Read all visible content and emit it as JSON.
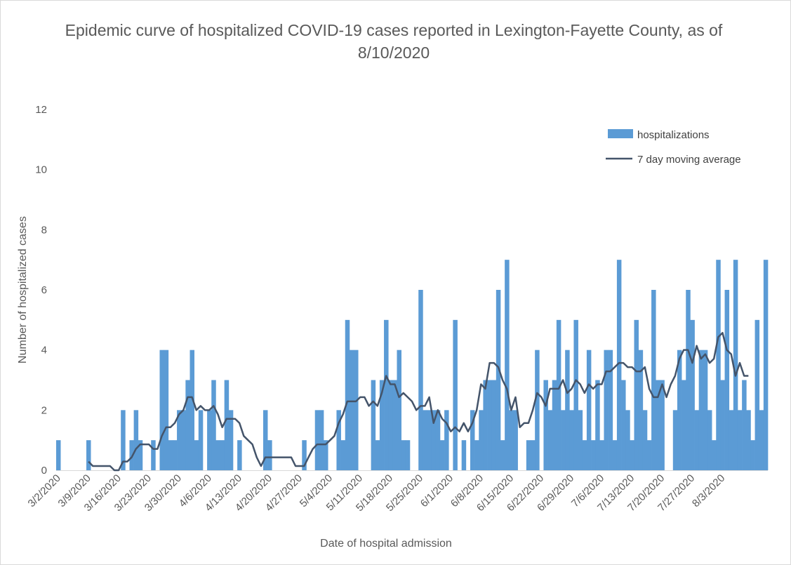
{
  "chart_data": {
    "type": "bar",
    "title": "Epidemic curve of hospitalized COVID-19 cases reported in Lexington-Fayette County, as of 8/10/2020",
    "xlabel": "Date of hospital admission",
    "ylabel": "Number of hospitalized cases",
    "ylim": [
      0,
      12
    ],
    "yticks": [
      "0",
      "2",
      "4",
      "6",
      "8",
      "10",
      "12"
    ],
    "grid": false,
    "legend_position": "top-right",
    "x_start": "3/2/2020",
    "x_end": "8/10/2020",
    "x_tick_labels": [
      "3/2/2020",
      "3/9/2020",
      "3/16/2020",
      "3/23/2020",
      "3/30/2020",
      "4/6/2020",
      "4/13/2020",
      "4/20/2020",
      "4/27/2020",
      "5/4/2020",
      "5/11/2020",
      "5/18/2020",
      "5/25/2020",
      "6/1/2020",
      "6/8/2020",
      "6/15/2020",
      "6/22/2020",
      "6/29/2020",
      "7/6/2020",
      "7/13/2020",
      "7/20/2020",
      "7/27/2020",
      "8/3/2020"
    ],
    "series": [
      {
        "name": "hospitalizations",
        "type": "bar",
        "color": "#5b9bd5",
        "values": [
          1,
          0,
          0,
          0,
          0,
          0,
          0,
          1,
          0,
          0,
          0,
          0,
          0,
          0,
          0,
          2,
          0,
          1,
          2,
          1,
          0,
          0,
          1,
          0,
          4,
          4,
          1,
          1,
          2,
          2,
          3,
          4,
          1,
          2,
          0,
          2,
          3,
          1,
          1,
          3,
          2,
          0,
          1,
          0,
          0,
          0,
          0,
          0,
          2,
          1,
          0,
          0,
          0,
          0,
          0,
          0,
          0,
          1,
          0,
          0,
          2,
          2,
          1,
          0,
          0,
          2,
          1,
          5,
          4,
          4,
          0,
          0,
          0,
          3,
          1,
          3,
          5,
          3,
          3,
          4,
          1,
          1,
          0,
          0,
          6,
          2,
          2,
          2,
          2,
          1,
          2,
          0,
          5,
          0,
          1,
          0,
          2,
          1,
          2,
          3,
          3,
          3,
          6,
          1,
          7,
          2,
          2,
          0,
          0,
          1,
          1,
          4,
          0,
          3,
          2,
          3,
          5,
          2,
          4,
          2,
          5,
          2,
          1,
          4,
          1,
          3,
          1,
          4,
          4,
          1,
          7,
          3,
          2,
          1,
          5,
          4,
          2,
          1,
          6,
          3,
          3,
          0,
          0,
          2,
          4,
          3,
          6,
          5,
          2,
          4,
          4,
          2,
          1,
          7,
          3,
          6,
          2,
          7,
          2,
          3,
          2,
          1,
          5,
          2,
          7
        ]
      },
      {
        "name": "7 day moving average",
        "type": "line",
        "color": "#44546a",
        "values": [
          null,
          null,
          null,
          null,
          null,
          null,
          null,
          0.29,
          0.14,
          0.14,
          0.14,
          0.14,
          0.14,
          0.0,
          0.0,
          0.29,
          0.29,
          0.43,
          0.71,
          0.86,
          0.86,
          0.86,
          0.71,
          0.71,
          1.14,
          1.43,
          1.43,
          1.57,
          1.86,
          2.0,
          2.43,
          2.43,
          2.0,
          2.14,
          2.0,
          2.0,
          2.14,
          1.86,
          1.43,
          1.71,
          1.71,
          1.71,
          1.57,
          1.14,
          1.0,
          0.86,
          0.43,
          0.14,
          0.43,
          0.43,
          0.43,
          0.43,
          0.43,
          0.43,
          0.43,
          0.14,
          0.14,
          0.14,
          0.43,
          0.71,
          0.86,
          0.86,
          0.86,
          1.0,
          1.14,
          1.57,
          1.86,
          2.29,
          2.29,
          2.29,
          2.43,
          2.43,
          2.14,
          2.29,
          2.14,
          2.57,
          3.14,
          2.86,
          2.86,
          2.43,
          2.57,
          2.43,
          2.29,
          2.0,
          2.14,
          2.14,
          2.43,
          1.57,
          2.0,
          1.71,
          1.57,
          1.29,
          1.43,
          1.29,
          1.57,
          1.29,
          1.57,
          2.0,
          2.86,
          2.71,
          3.57,
          3.57,
          3.43,
          3.0,
          2.71,
          2.0,
          2.43,
          1.43,
          1.57,
          1.57,
          2.0,
          2.57,
          2.43,
          2.14,
          2.71,
          2.71,
          2.71,
          3.0,
          2.57,
          2.71,
          3.0,
          2.86,
          2.57,
          2.86,
          2.71,
          2.86,
          2.86,
          3.29,
          3.29,
          3.43,
          3.57,
          3.57,
          3.43,
          3.43,
          3.29,
          3.29,
          3.43,
          2.71,
          2.43,
          2.43,
          2.86,
          2.43,
          2.86,
          3.14,
          3.71,
          4.0,
          4.0,
          3.57,
          4.14,
          3.71,
          3.86,
          3.57,
          3.71,
          4.43,
          4.57,
          4.0,
          3.86,
          3.14,
          3.57,
          3.14,
          3.14
        ]
      }
    ]
  }
}
